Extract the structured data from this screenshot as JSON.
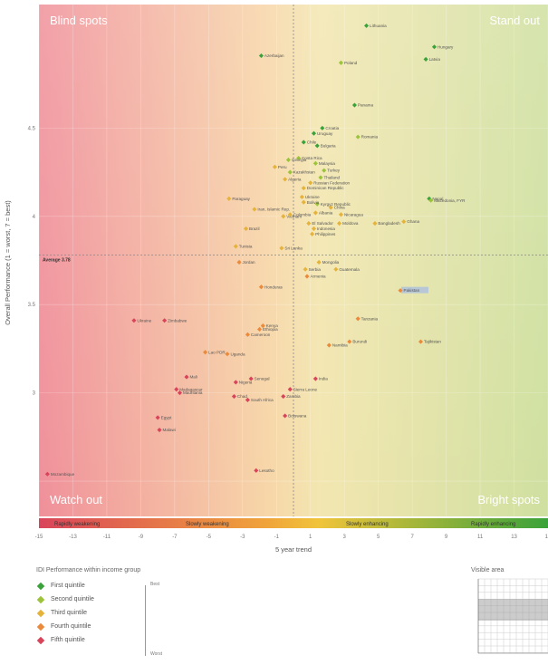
{
  "quadrants": {
    "top_left": "Blind spots",
    "top_right": "Stand out",
    "bottom_left": "Watch out",
    "bottom_right": "Bright spots"
  },
  "average_label": "Average 3.78",
  "trend_bands": [
    "Rapidly weakening",
    "Slowly weakening",
    "Slowly enhancing",
    "Rapidly enhancing"
  ],
  "legend": {
    "title": "IDI Performance within income group",
    "items": [
      {
        "label": "First quintile",
        "color": "#3aa23a"
      },
      {
        "label": "Second quintile",
        "color": "#9cc43a"
      },
      {
        "label": "Third quintile",
        "color": "#e5b23a"
      },
      {
        "label": "Fourth quintile",
        "color": "#ea8a3a"
      },
      {
        "label": "Fifth quintile",
        "color": "#d9445a"
      }
    ],
    "scale_top": "Best",
    "scale_bottom": "Worst"
  },
  "minimap_title": "Visible area",
  "colors": {
    "q1": "#3aa23a",
    "q2": "#9cc43a",
    "q3": "#e5b23a",
    "q4": "#ea8a3a",
    "q5": "#d9445a",
    "highlight": "#b8c7d6"
  },
  "chart_data": {
    "type": "scatter",
    "xlabel": "5 year trend",
    "ylabel": "Overall Performance (1 = worst, 7 = best)",
    "xlim": [
      -15,
      15
    ],
    "ylim": [
      2.3,
      5.2
    ],
    "average_y": 3.78,
    "x_ticks": [
      -15,
      -13,
      -11,
      -9,
      -7,
      -5,
      -3,
      -1,
      1,
      3,
      5,
      7,
      9,
      11,
      13,
      15
    ],
    "y_ticks": [
      2.5,
      3.0,
      3.5,
      4.0,
      4.5
    ],
    "y_tick_labels": [
      "",
      "3",
      "3.5",
      "4",
      "4.5"
    ],
    "series": [
      {
        "quintile": 1,
        "points": [
          {
            "name": "Lithuania",
            "x": 4.3,
            "y": 5.08
          },
          {
            "name": "Hungary",
            "x": 8.3,
            "y": 4.96
          },
          {
            "name": "Latvia",
            "x": 7.8,
            "y": 4.89
          },
          {
            "name": "Azerbaijan",
            "x": -1.9,
            "y": 4.91
          },
          {
            "name": "Croatia",
            "x": 1.7,
            "y": 4.5
          },
          {
            "name": "Bulgaria",
            "x": 1.4,
            "y": 4.4
          },
          {
            "name": "Chile",
            "x": 0.6,
            "y": 4.42
          },
          {
            "name": "Uruguay",
            "x": 1.2,
            "y": 4.47
          },
          {
            "name": "Nepal",
            "x": 8.0,
            "y": 4.1
          },
          {
            "name": "Panama",
            "x": 3.6,
            "y": 4.63
          }
        ]
      },
      {
        "quintile": 2,
        "points": [
          {
            "name": "Poland",
            "x": 2.8,
            "y": 4.87
          },
          {
            "name": "Romania",
            "x": 3.8,
            "y": 4.45
          },
          {
            "name": "Costa Rica",
            "x": 0.3,
            "y": 4.33
          },
          {
            "name": "Malaysia",
            "x": 1.3,
            "y": 4.3
          },
          {
            "name": "Turkey",
            "x": 1.8,
            "y": 4.26
          },
          {
            "name": "Thailand",
            "x": 1.6,
            "y": 4.22
          },
          {
            "name": "Georgia",
            "x": -0.3,
            "y": 4.32
          },
          {
            "name": "Kazakhstan",
            "x": -0.2,
            "y": 4.25
          },
          {
            "name": "Macedonia, FYR",
            "x": 8.1,
            "y": 4.09
          },
          {
            "name": "Kyrgyz Republic",
            "x": 1.4,
            "y": 4.07
          }
        ]
      },
      {
        "quintile": 3,
        "points": [
          {
            "name": "Algeria",
            "x": -0.5,
            "y": 4.21
          },
          {
            "name": "Peru",
            "x": -1.1,
            "y": 4.28
          },
          {
            "name": "Russian Federation",
            "x": 1.0,
            "y": 4.19
          },
          {
            "name": "Dominican Republic",
            "x": 0.6,
            "y": 4.16
          },
          {
            "name": "China",
            "x": 2.2,
            "y": 4.05
          },
          {
            "name": "Paraguay",
            "x": -3.8,
            "y": 4.1
          },
          {
            "name": "Iran, Islamic Rep.",
            "x": -2.3,
            "y": 4.04
          },
          {
            "name": "Vietnam",
            "x": -0.6,
            "y": 4.0
          },
          {
            "name": "Colombia",
            "x": -0.2,
            "y": 4.01
          },
          {
            "name": "Albania",
            "x": 1.3,
            "y": 4.02
          },
          {
            "name": "El Salvador",
            "x": 0.9,
            "y": 3.96
          },
          {
            "name": "Indonesia",
            "x": 1.2,
            "y": 3.93
          },
          {
            "name": "Philippines",
            "x": 1.1,
            "y": 3.9
          },
          {
            "name": "Nicaragua",
            "x": 2.8,
            "y": 4.01
          },
          {
            "name": "Moldova",
            "x": 2.7,
            "y": 3.96
          },
          {
            "name": "Bangladesh",
            "x": 4.8,
            "y": 3.96
          },
          {
            "name": "Bolivia",
            "x": 0.6,
            "y": 4.08
          },
          {
            "name": "Ukraine",
            "x": 0.5,
            "y": 4.11
          },
          {
            "name": "Brazil",
            "x": -2.8,
            "y": 3.93
          },
          {
            "name": "Tunisia",
            "x": -3.4,
            "y": 3.83
          },
          {
            "name": "Sri Lanka",
            "x": -0.7,
            "y": 3.82
          },
          {
            "name": "Ghana",
            "x": 6.5,
            "y": 3.97
          },
          {
            "name": "Mongolia",
            "x": 1.5,
            "y": 3.74
          },
          {
            "name": "Guatemala",
            "x": 2.5,
            "y": 3.7
          },
          {
            "name": "Serbia",
            "x": 0.7,
            "y": 3.7
          }
        ]
      },
      {
        "quintile": 4,
        "points": [
          {
            "name": "Jordan",
            "x": -3.2,
            "y": 3.74
          },
          {
            "name": "Armenia",
            "x": 0.8,
            "y": 3.66
          },
          {
            "name": "Honduras",
            "x": -1.9,
            "y": 3.6
          },
          {
            "name": "Pakistan",
            "x": 6.3,
            "y": 3.58
          },
          {
            "name": "Tanzania",
            "x": 3.8,
            "y": 3.42
          },
          {
            "name": "Kenya",
            "x": -1.8,
            "y": 3.38
          },
          {
            "name": "Cameroon",
            "x": -2.7,
            "y": 3.33
          },
          {
            "name": "Ethiopia",
            "x": -2.0,
            "y": 3.36
          },
          {
            "name": "Lao PDR",
            "x": -5.2,
            "y": 3.23
          },
          {
            "name": "Uganda",
            "x": -3.9,
            "y": 3.22
          },
          {
            "name": "Namibia",
            "x": 2.1,
            "y": 3.27
          },
          {
            "name": "Burundi",
            "x": 3.3,
            "y": 3.29
          },
          {
            "name": "Tajikistan",
            "x": 7.5,
            "y": 3.29
          }
        ]
      },
      {
        "quintile": 5,
        "points": [
          {
            "name": "Ukraine",
            "x": -9.4,
            "y": 3.41
          },
          {
            "name": "Zimbabwe",
            "x": -7.6,
            "y": 3.41
          },
          {
            "name": "Mali",
            "x": -6.3,
            "y": 3.09
          },
          {
            "name": "Nigeria",
            "x": -3.4,
            "y": 3.06
          },
          {
            "name": "Senegal",
            "x": -2.5,
            "y": 3.08
          },
          {
            "name": "India",
            "x": 1.3,
            "y": 3.08
          },
          {
            "name": "Madagascar",
            "x": -6.9,
            "y": 3.02
          },
          {
            "name": "Mauritania",
            "x": -6.7,
            "y": 3.0
          },
          {
            "name": "Chad",
            "x": -3.5,
            "y": 2.98
          },
          {
            "name": "South Africa",
            "x": -2.7,
            "y": 2.96
          },
          {
            "name": "Sierra Leone",
            "x": -0.2,
            "y": 3.02
          },
          {
            "name": "Zambia",
            "x": -0.6,
            "y": 2.98
          },
          {
            "name": "Egypt",
            "x": -8.0,
            "y": 2.86
          },
          {
            "name": "Botswana",
            "x": -0.5,
            "y": 2.87
          },
          {
            "name": "Malawi",
            "x": -7.9,
            "y": 2.79
          },
          {
            "name": "Lesotho",
            "x": -2.2,
            "y": 2.56
          },
          {
            "name": "Mozambique",
            "x": -14.5,
            "y": 2.54
          }
        ]
      }
    ]
  }
}
